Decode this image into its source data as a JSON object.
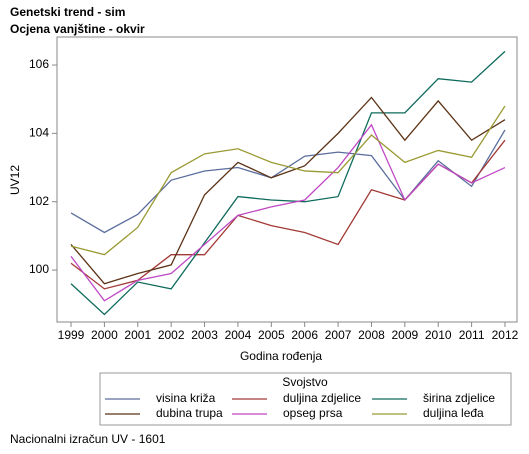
{
  "chart_data": {
    "type": "line",
    "title": "Genetski trend - sim",
    "subtitle": "Ocjena vanjštine - okvir",
    "x_label": "Godina rođenja",
    "y_label": "UV12",
    "legend_title": "Svojstvo",
    "legend_position": "bottom",
    "footnote": "Nacionalni izračun UV - 1601",
    "x": [
      1999,
      2000,
      2001,
      2002,
      2003,
      2004,
      2005,
      2006,
      2007,
      2008,
      2009,
      2010,
      2011,
      2012
    ],
    "xlim": [
      1998.58,
      2012.36
    ],
    "xticks": [
      1999,
      2000,
      2001,
      2002,
      2003,
      2004,
      2005,
      2006,
      2007,
      2008,
      2009,
      2010,
      2011,
      2012
    ],
    "ylim": [
      98.48,
      106.82
    ],
    "yticks": [
      100,
      102,
      104,
      106
    ],
    "grid": false,
    "series": [
      {
        "name": "visina križa",
        "color": "#5a6d9c",
        "values": [
          101.67,
          101.1,
          101.63,
          102.63,
          102.9,
          103.0,
          102.7,
          103.33,
          103.45,
          103.35,
          102.05,
          103.2,
          102.45,
          104.1
        ]
      },
      {
        "name": "duljina zdjelice",
        "color": "#a23a36",
        "values": [
          100.2,
          99.45,
          99.7,
          100.45,
          100.45,
          101.6,
          101.3,
          101.1,
          100.75,
          102.35,
          102.05,
          103.1,
          102.55,
          103.8
        ]
      },
      {
        "name": "širina zdjelice",
        "color": "#0e6b5c",
        "values": [
          99.6,
          98.7,
          99.65,
          99.45,
          100.8,
          102.15,
          102.05,
          102.0,
          102.15,
          104.6,
          104.6,
          105.6,
          105.5,
          106.4
        ]
      },
      {
        "name": "dubina trupa",
        "color": "#5c3316",
        "values": [
          100.75,
          99.6,
          99.9,
          100.15,
          102.2,
          103.15,
          102.7,
          103.05,
          104.0,
          105.05,
          103.8,
          104.95,
          103.8,
          104.4
        ]
      },
      {
        "name": "opseg prsa",
        "color": "#bf48c4",
        "values": [
          100.4,
          99.1,
          99.7,
          99.9,
          100.75,
          101.6,
          101.85,
          102.05,
          103.0,
          104.25,
          102.05,
          103.1,
          102.55,
          103.0
        ]
      },
      {
        "name": "duljina leđa",
        "color": "#9a9a34",
        "values": [
          100.7,
          100.45,
          101.25,
          102.85,
          103.4,
          103.55,
          103.15,
          102.9,
          102.85,
          103.95,
          103.15,
          103.5,
          103.3,
          104.8
        ]
      }
    ]
  }
}
